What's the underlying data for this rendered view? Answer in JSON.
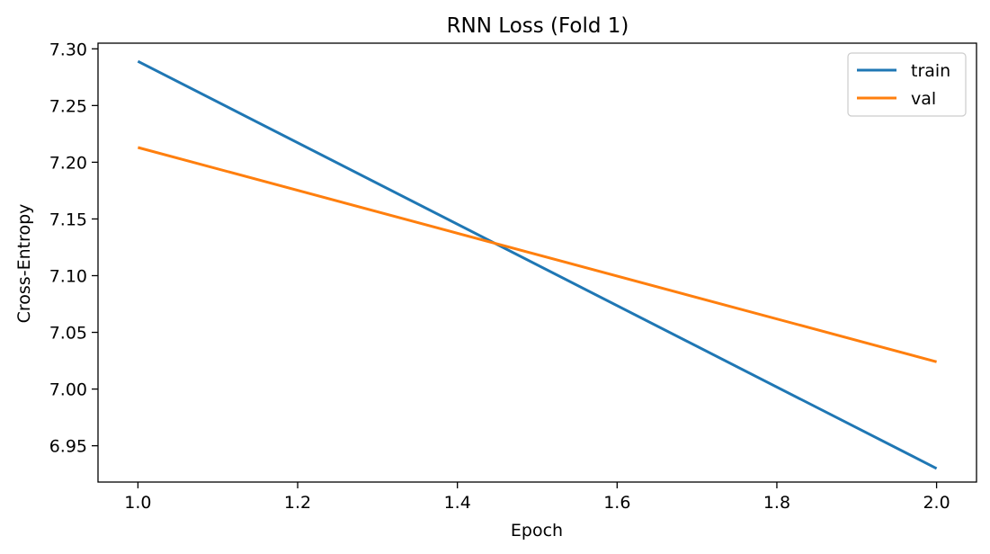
{
  "chart_data": {
    "type": "line",
    "title": "RNN Loss (Fold 1)",
    "xlabel": "Epoch",
    "ylabel": "Cross-Entropy",
    "xlim": [
      0.95,
      2.05
    ],
    "ylim": [
      6.918,
      7.305
    ],
    "x_ticks": [
      1.0,
      1.2,
      1.4,
      1.6,
      1.8,
      2.0
    ],
    "x_tick_labels": [
      "1.0",
      "1.2",
      "1.4",
      "1.6",
      "1.8",
      "2.0"
    ],
    "y_ticks": [
      6.95,
      7.0,
      7.05,
      7.1,
      7.15,
      7.2,
      7.25,
      7.3
    ],
    "y_tick_labels": [
      "6.95",
      "7.00",
      "7.05",
      "7.10",
      "7.15",
      "7.20",
      "7.25",
      "7.30"
    ],
    "grid": false,
    "legend_position": "top-right",
    "series": [
      {
        "name": "train",
        "color": "#1f77b4",
        "x": [
          1.0,
          2.0
        ],
        "y": [
          7.289,
          6.93
        ]
      },
      {
        "name": "val",
        "color": "#ff7f0e",
        "x": [
          1.0,
          2.0
        ],
        "y": [
          7.213,
          7.024
        ]
      }
    ]
  }
}
